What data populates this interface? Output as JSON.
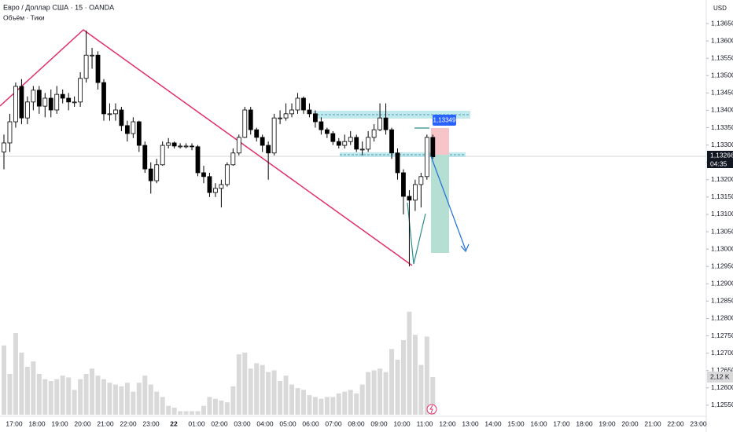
{
  "chart_data": {
    "type": "candlestick",
    "title": "Евро / Доллар США · 15 · OANDA",
    "subtitle": "Объём · Тики",
    "currency": "USD",
    "open": [
      1.1328,
      1.13306,
      1.13367,
      1.13469,
      1.13378,
      1.13424,
      1.13458,
      1.13412,
      1.13435,
      1.13401,
      1.13446,
      1.13435,
      1.13424,
      1.13424,
      1.13492,
      1.13559,
      1.13559,
      1.1348,
      1.1339,
      1.1339,
      1.13401,
      1.13356,
      1.13333,
      1.13367,
      1.13299,
      1.13231,
      1.13197,
      1.13243,
      1.13299,
      1.13306,
      1.13297,
      1.13297,
      1.13297,
      1.13295,
      1.1322,
      1.13209,
      1.13163,
      1.13175,
      1.13186,
      1.13243,
      1.13277,
      1.13322,
      1.13401,
      1.13344,
      1.13322,
      1.13299,
      1.13277,
      1.13378,
      1.13378,
      1.1339,
      1.13401,
      1.13435,
      1.13401,
      1.1339,
      1.13367,
      1.13344,
      1.13333,
      1.1331,
      1.13299,
      1.1331,
      1.13322,
      1.13288,
      1.13288,
      1.13322,
      1.13344,
      1.13378,
      1.13344,
      1.13277,
      1.1322,
      1.13152,
      1.13141,
      1.13186,
      1.13209,
      1.13322
    ],
    "high": [
      1.1333,
      1.1339,
      1.1348,
      1.1349,
      1.1344,
      1.1347,
      1.1347,
      1.1345,
      1.1346,
      1.1347,
      1.1346,
      1.1345,
      1.1344,
      1.1351,
      1.1363,
      1.1358,
      1.1357,
      1.1349,
      1.1342,
      1.1342,
      1.1341,
      1.1337,
      1.1338,
      1.1337,
      1.1331,
      1.1325,
      1.1326,
      1.1331,
      1.1332,
      1.1331,
      1.13305,
      1.13305,
      1.13305,
      1.133,
      1.1324,
      1.1322,
      1.1319,
      1.132,
      1.1325,
      1.1329,
      1.1333,
      1.1341,
      1.1341,
      1.1335,
      1.1333,
      1.1331,
      1.1339,
      1.134,
      1.1342,
      1.1342,
      1.1345,
      1.1344,
      1.1342,
      1.134,
      1.1338,
      1.1335,
      1.1334,
      1.1332,
      1.1333,
      1.1334,
      1.1333,
      1.1331,
      1.1334,
      1.1336,
      1.1342,
      1.1342,
      1.1335,
      1.1329,
      1.1323,
      1.1317,
      1.132,
      1.1322,
      1.1333,
      1.1333
    ],
    "low": [
      1.1323,
      1.1328,
      1.1335,
      1.1336,
      1.1336,
      1.134,
      1.1339,
      1.1338,
      1.1338,
      1.1339,
      1.1342,
      1.134,
      1.1341,
      1.1341,
      1.1348,
      1.1352,
      1.1346,
      1.1337,
      1.1337,
      1.1337,
      1.1334,
      1.1331,
      1.1332,
      1.1328,
      1.1322,
      1.1316,
      1.1319,
      1.1324,
      1.1329,
      1.1329,
      1.1329,
      1.1329,
      1.13285,
      1.1321,
      1.1319,
      1.1315,
      1.1315,
      1.1312,
      1.1318,
      1.1324,
      1.1327,
      1.1332,
      1.1333,
      1.1331,
      1.1328,
      1.132,
      1.1327,
      1.1336,
      1.1337,
      1.1338,
      1.1339,
      1.1339,
      1.1338,
      1.1335,
      1.1333,
      1.1332,
      1.133,
      1.1329,
      1.1329,
      1.133,
      1.1328,
      1.1327,
      1.1328,
      1.1331,
      1.1334,
      1.1333,
      1.1326,
      1.132,
      1.131,
      1.1295,
      1.1311,
      1.1312,
      1.132,
      1.1326
    ],
    "close": [
      1.13306,
      1.13367,
      1.13469,
      1.13378,
      1.13424,
      1.13458,
      1.13412,
      1.13435,
      1.13401,
      1.13446,
      1.13435,
      1.13424,
      1.13424,
      1.13492,
      1.13559,
      1.13559,
      1.1348,
      1.1339,
      1.1339,
      1.13401,
      1.13356,
      1.13333,
      1.13367,
      1.13299,
      1.13231,
      1.13197,
      1.13243,
      1.13299,
      1.13306,
      1.13297,
      1.13297,
      1.13297,
      1.13295,
      1.1322,
      1.13209,
      1.13163,
      1.13175,
      1.13186,
      1.13243,
      1.13277,
      1.13322,
      1.13401,
      1.13344,
      1.13322,
      1.13299,
      1.13277,
      1.13378,
      1.13378,
      1.1339,
      1.13401,
      1.13435,
      1.13401,
      1.1339,
      1.13367,
      1.13344,
      1.13333,
      1.1331,
      1.13299,
      1.1331,
      1.13322,
      1.13288,
      1.13288,
      1.13322,
      1.13344,
      1.13378,
      1.13344,
      1.13277,
      1.1322,
      1.13152,
      1.13141,
      1.13186,
      1.13209,
      1.13322,
      1.13266
    ],
    "volumes": [
      3.9,
      2.3,
      4.6,
      3.5,
      2.7,
      3.0,
      2.3,
      2.0,
      1.9,
      2.0,
      2.2,
      2.1,
      1.4,
      2.0,
      2.3,
      2.6,
      2.2,
      2.0,
      1.8,
      1.7,
      1.6,
      1.8,
      1.3,
      1.8,
      2.2,
      1.7,
      1.3,
      1.0,
      0.5,
      0.4,
      0.2,
      0.2,
      0.2,
      0.2,
      0.5,
      1.0,
      0.9,
      0.8,
      0.7,
      1.6,
      3.4,
      3.5,
      2.6,
      2.9,
      2.8,
      2.4,
      2.5,
      1.9,
      2.2,
      1.7,
      1.5,
      1.4,
      1.1,
      1.0,
      0.9,
      1.0,
      1.0,
      1.2,
      1.3,
      1.4,
      1.2,
      1.7,
      2.4,
      2.5,
      2.6,
      2.4,
      3.7,
      3.1,
      4.2,
      5.8,
      4.5,
      2.8,
      4.4,
      2.12
    ],
    "volume_last_label": "2,12 K",
    "volume_ylim": [
      0,
      6.5
    ],
    "up_color": "#ffffff",
    "down_color": "#000000",
    "volume_color": "#d9d9d9",
    "ylim": [
      1.12518,
      1.13718
    ],
    "yticks": [
      {
        "value": 1.1365,
        "label": "1,13650"
      },
      {
        "value": 1.136,
        "label": "1,13600"
      },
      {
        "value": 1.1355,
        "label": "1,13550"
      },
      {
        "value": 1.135,
        "label": "1,13500"
      },
      {
        "value": 1.1345,
        "label": "1,13450"
      },
      {
        "value": 1.134,
        "label": "1,13400"
      },
      {
        "value": 1.1335,
        "label": "1,13350"
      },
      {
        "value": 1.133,
        "label": "1,13300"
      },
      {
        "value": 1.1325,
        "label": "1,13250"
      },
      {
        "value": 1.132,
        "label": "1,13200"
      },
      {
        "value": 1.1315,
        "label": "1,13150"
      },
      {
        "value": 1.131,
        "label": "1,13100"
      },
      {
        "value": 1.1305,
        "label": "1,13050"
      },
      {
        "value": 1.13,
        "label": "1,13000"
      },
      {
        "value": 1.1295,
        "label": "1,12950"
      },
      {
        "value": 1.129,
        "label": "1,12900"
      },
      {
        "value": 1.1285,
        "label": "1,12850"
      },
      {
        "value": 1.128,
        "label": "1,12800"
      },
      {
        "value": 1.1275,
        "label": "1,12750"
      },
      {
        "value": 1.127,
        "label": "1,12700"
      },
      {
        "value": 1.1265,
        "label": "1,12650"
      },
      {
        "value": 1.126,
        "label": "1,12600"
      },
      {
        "value": 1.1255,
        "label": "1,12550"
      }
    ],
    "xtick_labels": [
      "17:00",
      "18:00",
      "19:00",
      "20:00",
      "21:00",
      "22:00",
      "23:00",
      "22",
      "01:00",
      "02:00",
      "03:00",
      "04:00",
      "05:00",
      "06:00",
      "07:00",
      "08:00",
      "09:00",
      "10:00",
      "11:00",
      "12:00",
      "13:00",
      "14:00",
      "15:00",
      "16:00",
      "17:00",
      "18:00",
      "19:00",
      "20:00",
      "21:00",
      "22:00",
      "23:00"
    ],
    "last_price_label": "1,13266",
    "countdown": "04:35",
    "target_label": "1,13349"
  }
}
